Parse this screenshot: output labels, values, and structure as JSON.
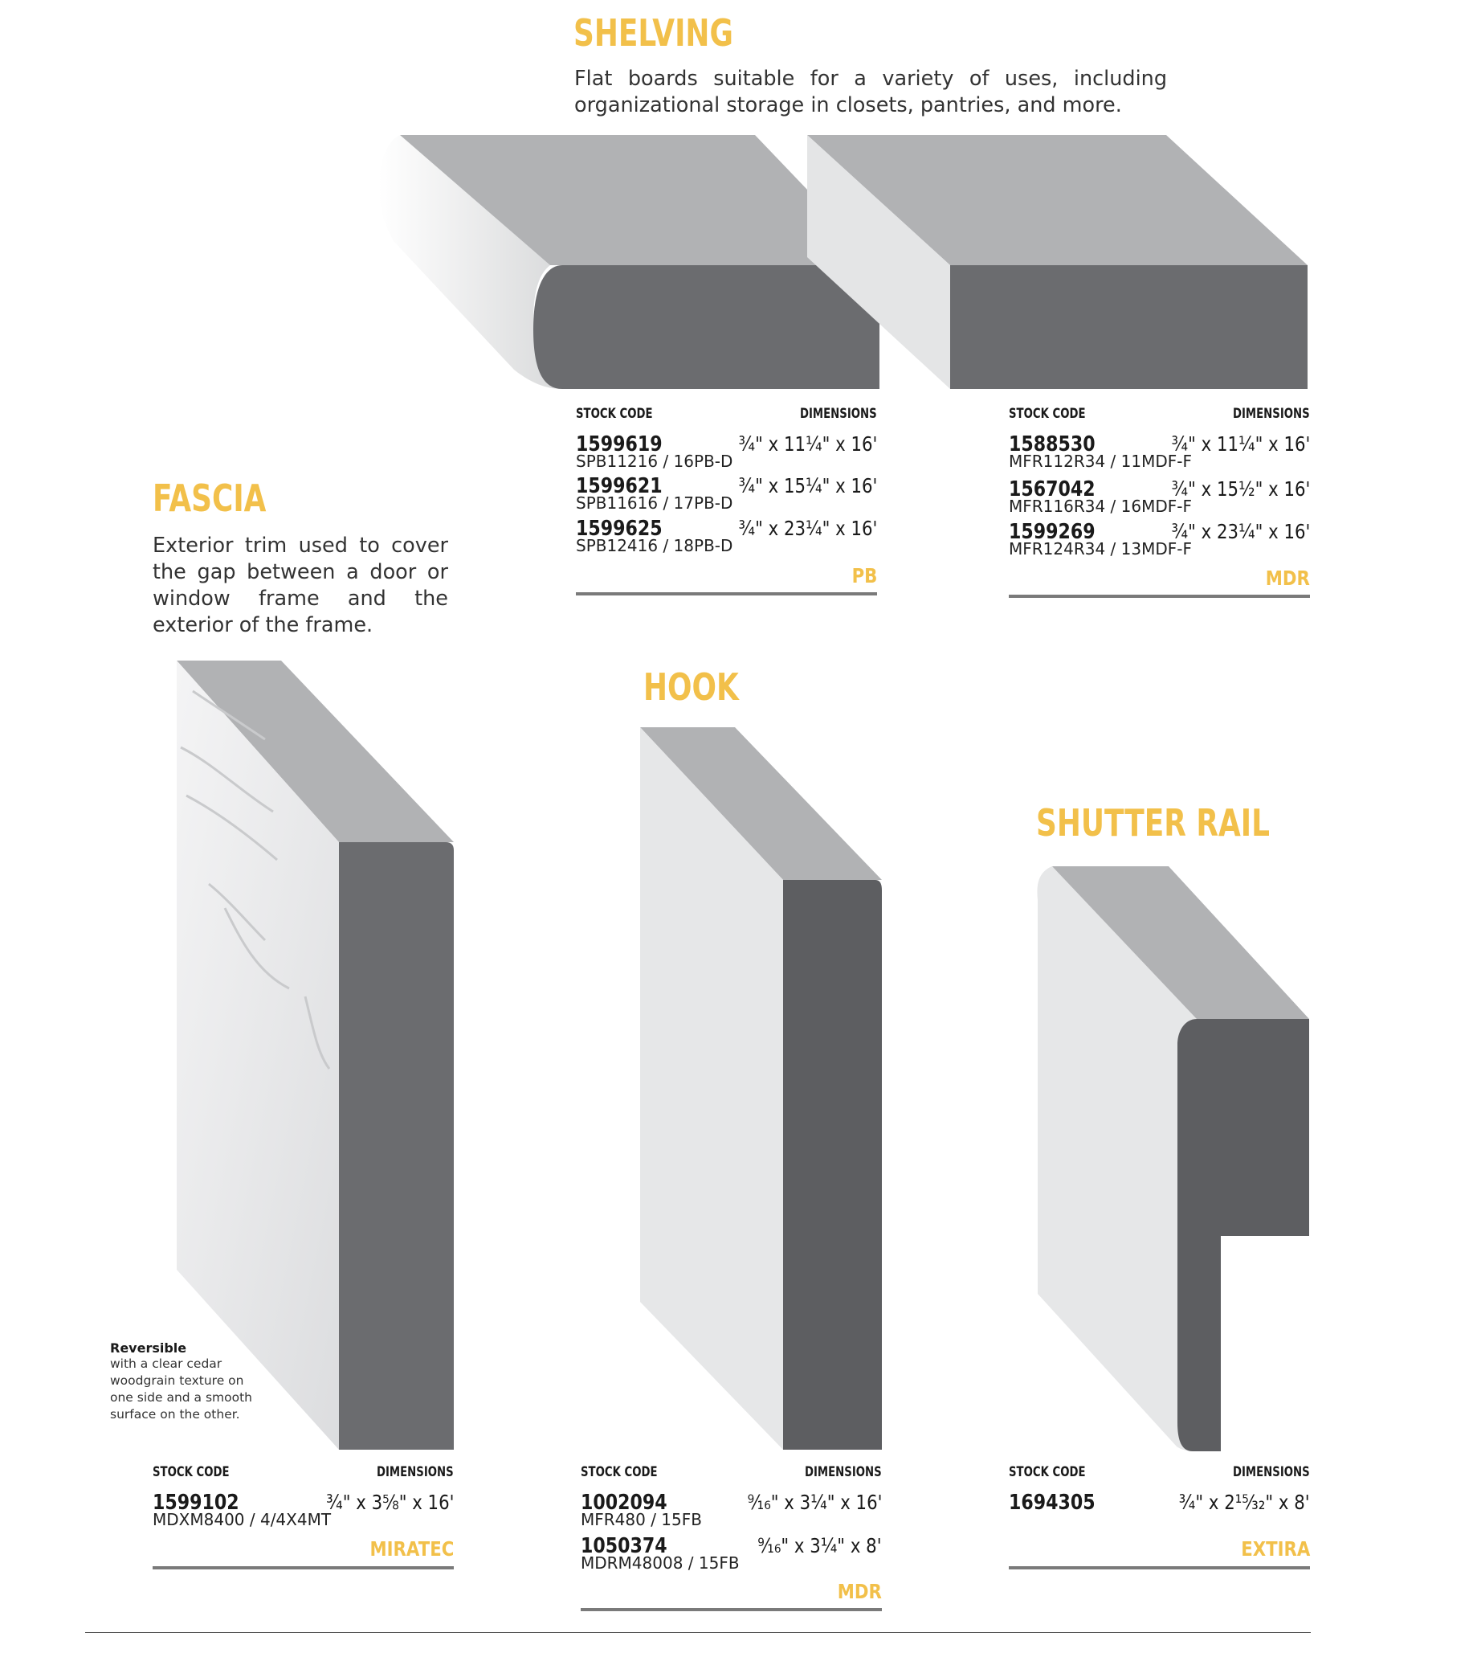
{
  "shelving": {
    "title": "SHELVING",
    "description": "Flat boards suitable for a variety of uses, including organizational storage in closets, pantries, and more.",
    "tables": [
      {
        "stock_code_header": "STOCK CODE",
        "dimensions_header": "DIMENSIONS",
        "items": [
          {
            "code": "1599619",
            "sub": "SPB11216 / 16PB-D",
            "dim": "¾\" x 11¼\" x 16'"
          },
          {
            "code": "1599621",
            "sub": "SPB11616 / 17PB-D",
            "dim": "¾\" x 15¼\" x 16'"
          },
          {
            "code": "1599625",
            "sub": "SPB12416 / 18PB-D",
            "dim": "¾\" x 23¼\" x 16'"
          }
        ],
        "material": "PB"
      },
      {
        "stock_code_header": "STOCK CODE",
        "dimensions_header": "DIMENSIONS",
        "items": [
          {
            "code": "1588530",
            "sub": "MFR112R34 / 11MDF-F",
            "dim": "¾\" x 11¼\" x 16'"
          },
          {
            "code": "1567042",
            "sub": "MFR116R34 / 16MDF-F",
            "dim": "¾\" x 15½\" x 16'"
          },
          {
            "code": "1599269",
            "sub": "MFR124R34 / 13MDF-F",
            "dim": "¾\" x 23¼\" x 16'"
          }
        ],
        "material": "MDR"
      }
    ]
  },
  "fascia": {
    "title": "FASCIA",
    "description": "Exterior trim used to cover the gap between a door or window frame and the exterior of the frame.",
    "note_title": "Reversible",
    "note_lines": [
      "with a clear cedar",
      "woodgrain texture on",
      "one side and a smooth",
      "surface on the other."
    ],
    "table": {
      "stock_code_header": "STOCK CODE",
      "dimensions_header": "DIMENSIONS",
      "items": [
        {
          "code": "1599102",
          "sub": "MDXM8400 / 4/4X4MT",
          "dim": "¾\" x 3⅝\" x 16'"
        }
      ],
      "material": "MIRATEC"
    }
  },
  "hook": {
    "title": "HOOK",
    "table": {
      "stock_code_header": "STOCK CODE",
      "dimensions_header": "DIMENSIONS",
      "items": [
        {
          "code": "1002094",
          "sub": "MFR480 / 15FB",
          "dim": "⁹⁄₁₆\" x 3¼\" x 16'"
        },
        {
          "code": "1050374",
          "sub": "MDRM48008 / 15FB",
          "dim": "⁹⁄₁₆\" x 3¼\" x 8'"
        }
      ],
      "material": "MDR"
    }
  },
  "shutter_rail": {
    "title": "SHUTTER RAIL",
    "table": {
      "stock_code_header": "STOCK CODE",
      "dimensions_header": "DIMENSIONS",
      "items": [
        {
          "code": "1694305",
          "sub": "",
          "dim": "¾\" x 2¹⁵⁄₃₂\" x 8'"
        }
      ],
      "material": "EXTIRA"
    }
  },
  "colors": {
    "accent": "#f2c04a",
    "board_top": "#b1b2b4",
    "board_end": "#6b6c6f",
    "board_face": "#e9eaeb",
    "rule": "#7a7a7a"
  }
}
